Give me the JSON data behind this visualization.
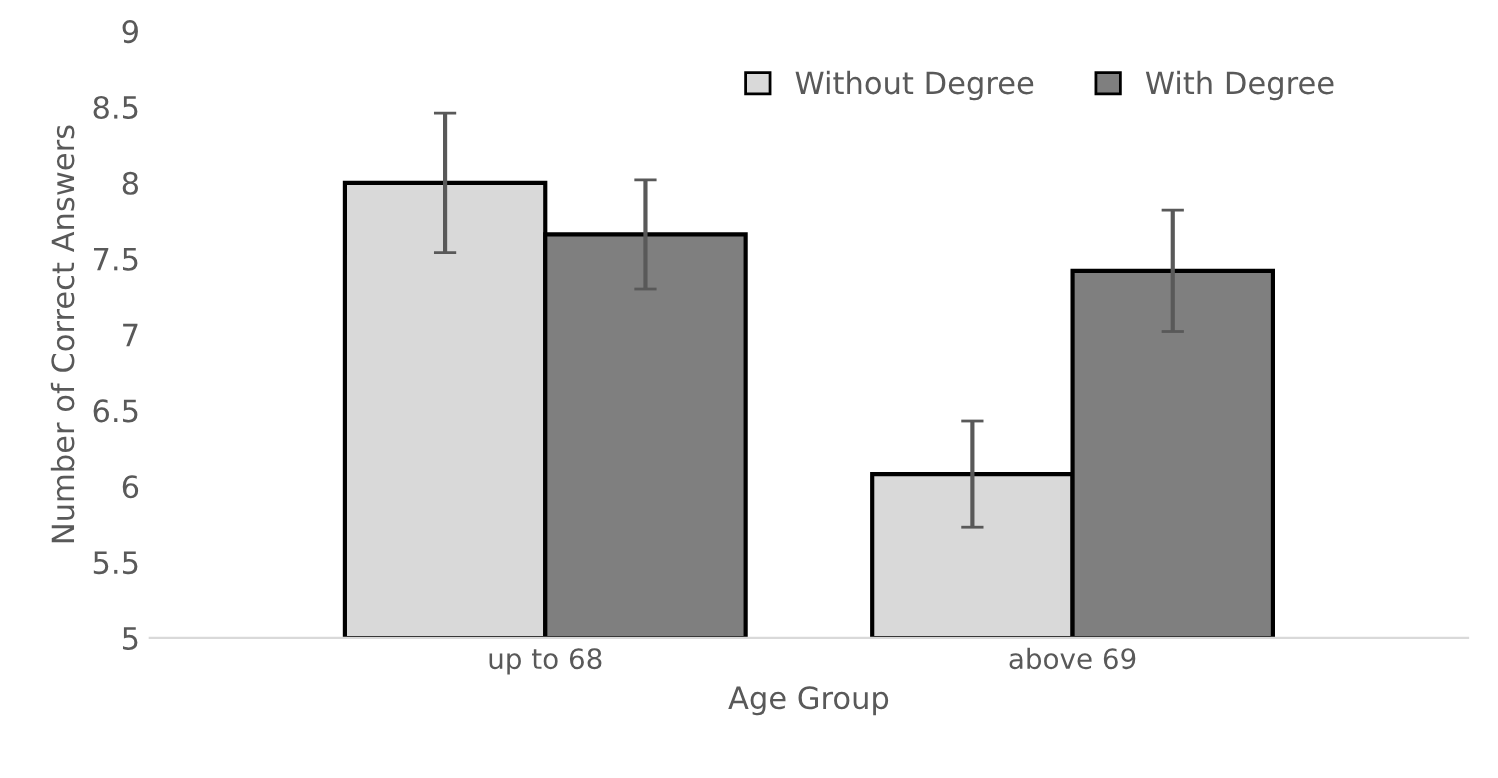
{
  "chart_data": {
    "type": "bar",
    "xlabel": "Age Group",
    "ylabel": "Number of Correct Answers",
    "categories": [
      "up to 68",
      "above 69"
    ],
    "series": [
      {
        "name": "Without Degree",
        "color": "#d9d9d9",
        "values": [
          8.0,
          6.08
        ],
        "errors": [
          0.46,
          0.35
        ]
      },
      {
        "name": "With Degree",
        "color": "#7f7f7f",
        "values": [
          7.66,
          7.42
        ],
        "errors": [
          0.36,
          0.4
        ]
      }
    ],
    "ylim": [
      5,
      9
    ],
    "yticks": [
      5,
      5.5,
      6,
      6.5,
      7,
      7.5,
      8,
      8.5,
      9
    ],
    "grid": false,
    "legend": "top right"
  }
}
